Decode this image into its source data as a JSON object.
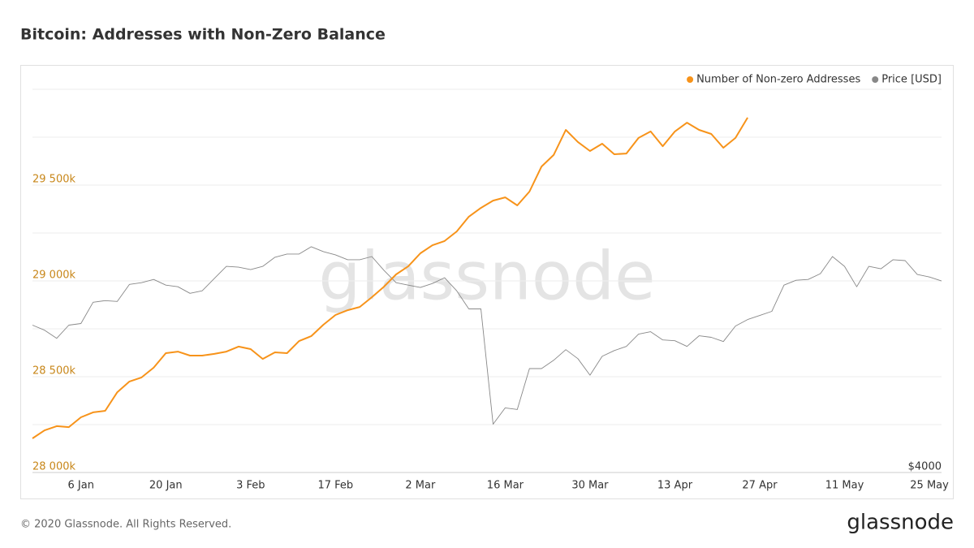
{
  "chart_data": {
    "type": "line",
    "title": "Bitcoin: Addresses with Non-Zero Balance",
    "footer": "© 2020 Glassnode. All Rights Reserved.",
    "logo": "glassnode",
    "watermark": "glassnode",
    "categories": [
      null,
      null,
      null,
      null,
      "6 Jan",
      null,
      null,
      null,
      null,
      null,
      null,
      "20 Jan",
      null,
      null,
      null,
      null,
      null,
      null,
      "3 Feb",
      null,
      null,
      null,
      null,
      null,
      null,
      "17 Feb",
      null,
      null,
      null,
      null,
      null,
      null,
      "2 Mar",
      null,
      null,
      null,
      null,
      null,
      null,
      "16 Mar",
      null,
      null,
      null,
      null,
      null,
      null,
      "30 Mar",
      null,
      null,
      null,
      null,
      null,
      null,
      "13 Apr",
      null,
      null,
      null,
      null,
      null,
      null,
      "27 Apr",
      null,
      null,
      null,
      null,
      null,
      null,
      "11 May",
      null,
      null,
      null,
      null,
      null,
      null,
      "25 May",
      null
    ],
    "series": [
      {
        "name": "Number of Non-zero Addresses",
        "color": "#f7931a",
        "values": [
          28178,
          28220,
          28242,
          28237,
          28288,
          28314,
          28322,
          28419,
          28475,
          28496,
          28547,
          28623,
          28631,
          28610,
          28610,
          28619,
          28631,
          28657,
          28644,
          28593,
          28627,
          28623,
          28686,
          28712,
          28771,
          28822,
          28847,
          28864,
          28915,
          28970,
          29034,
          29076,
          29144,
          29186,
          29208,
          29258,
          29335,
          29381,
          29419,
          29436,
          29394,
          29466,
          29597,
          29657,
          29788,
          29725,
          29678,
          29716,
          29661,
          29665,
          29746,
          29780,
          29703,
          29780,
          29826,
          29788,
          29767,
          29695,
          29746,
          29852,
          null,
          null,
          null,
          null,
          null,
          null,
          null,
          null,
          null,
          null,
          null,
          null,
          null,
          null,
          null,
          null
        ]
      },
      {
        "name": "Price [USD]",
        "color": "#888888",
        "axis": "y2",
        "values": [
          7428,
          7272,
          7028,
          7428,
          7477,
          8176,
          8233,
          8204,
          8815,
          8877,
          9000,
          8786,
          8728,
          8491,
          8580,
          9032,
          9508,
          9476,
          9380,
          9508,
          9876,
          10012,
          10012,
          10324,
          10116,
          9980,
          9776,
          9776,
          9908,
          9348,
          8877,
          8786,
          8700,
          8848,
          9064,
          8580,
          7952,
          7952,
          4900,
          5248,
          5212,
          6188,
          6188,
          6408,
          6700,
          6452,
          6020,
          6516,
          6676,
          6792,
          7152,
          7224,
          6980,
          6956,
          6792,
          7104,
          7056,
          6932,
          7400,
          7604,
          7736,
          7872,
          8786,
          8968,
          9000,
          9220,
          9908,
          9508,
          8728,
          9508,
          9412,
          9776,
          9740,
          9188,
          9092,
          8940
        ]
      }
    ],
    "ylim": [
      28000,
      30000
    ],
    "yticks": [
      {
        "value": 28000,
        "label": "28 000k"
      },
      {
        "value": 28500,
        "label": "28 500k"
      },
      {
        "value": 29000,
        "label": "29 000k"
      },
      {
        "value": 29500,
        "label": "29 500k"
      }
    ],
    "minor_yticks": [
      28250,
      28750,
      29250,
      29750,
      30000
    ],
    "ytick_color": "#c8871a",
    "y2lim": [
      4000,
      20000
    ],
    "y2ticks": [
      {
        "value": 4000,
        "label": "$4000"
      }
    ],
    "y2log": true,
    "grid": true,
    "legend": "top-right"
  }
}
